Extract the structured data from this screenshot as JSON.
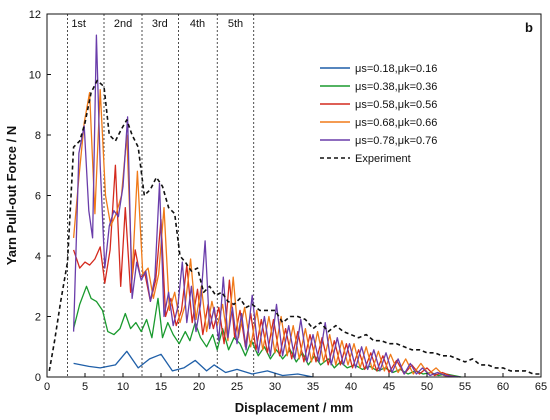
{
  "chart_data": {
    "type": "line",
    "panel_label": "b",
    "xlabel": "Displacement / mm",
    "ylabel": "Yarn Pull-out Force / N",
    "xlim": [
      0,
      65
    ],
    "ylim": [
      0,
      12
    ],
    "xticks": [
      0,
      5,
      10,
      15,
      20,
      25,
      30,
      35,
      40,
      45,
      50,
      55,
      60,
      65
    ],
    "yticks": [
      0,
      2,
      4,
      6,
      8,
      10,
      12
    ],
    "legend_position": "upper-right",
    "stage_boundaries": [
      2.7,
      7.5,
      12.5,
      17.3,
      22.4,
      27.2
    ],
    "stages": [
      {
        "label": "1st",
        "x": 3.2
      },
      {
        "label": "2nd",
        "x": 8.8
      },
      {
        "label": "3rd",
        "x": 13.8
      },
      {
        "label": "4th",
        "x": 18.8
      },
      {
        "label": "5th",
        "x": 23.8
      }
    ],
    "series": [
      {
        "name": "μs=0.18,μk=0.16",
        "color": "#1f5fa8",
        "dash": false,
        "x": [
          3.5,
          4.5,
          5.5,
          7,
          9,
          10.5,
          12,
          13.5,
          15,
          16.5,
          18,
          19.5,
          21,
          22,
          23.5,
          25,
          27,
          29,
          31,
          33,
          35
        ],
        "y": [
          0.45,
          0.4,
          0.35,
          0.3,
          0.4,
          0.85,
          0.3,
          0.6,
          0.75,
          0.2,
          0.3,
          0.55,
          0.2,
          0.4,
          0.15,
          0.25,
          0.1,
          0.2,
          0.05,
          0.1,
          0.0
        ]
      },
      {
        "name": "μs=0.38,μk=0.36",
        "color": "#1a9a2e",
        "dash": false,
        "x": [
          3.5,
          4.3,
          5.2,
          5.8,
          6.5,
          7.3,
          8.0,
          8.8,
          9.6,
          10.3,
          11.0,
          11.7,
          12.4,
          13.1,
          13.8,
          14.6,
          15.2,
          15.9,
          16.6,
          17.4,
          18.2,
          18.8,
          19.5,
          20.2,
          21.0,
          21.8,
          22.4,
          23.1,
          23.9,
          24.6,
          25.4,
          26.1,
          26.9,
          27.8,
          28.6,
          29.4,
          30.2,
          31.0,
          32.0,
          32.8,
          33.6,
          34.4,
          35.2,
          36.0,
          37.0,
          37.8,
          38.6,
          39.5,
          40.5,
          41.5,
          42.5,
          43.5,
          44.5,
          45.5,
          46.5,
          47.5,
          48.5,
          49.5,
          50.5,
          51.5,
          52.5,
          53.5,
          54.5
        ],
        "y": [
          1.6,
          2.4,
          3.0,
          2.6,
          2.5,
          2.2,
          1.5,
          1.4,
          1.6,
          2.1,
          1.6,
          1.8,
          1.5,
          1.9,
          1.3,
          2.6,
          1.3,
          1.8,
          1.4,
          1.1,
          1.5,
          1.2,
          1.8,
          1.3,
          1.0,
          1.4,
          0.9,
          1.6,
          0.9,
          1.3,
          1.1,
          0.7,
          1.2,
          0.7,
          1.0,
          0.6,
          0.9,
          0.6,
          0.9,
          0.5,
          0.8,
          0.4,
          0.7,
          0.4,
          0.6,
          0.3,
          0.5,
          0.3,
          0.4,
          0.25,
          0.35,
          0.2,
          0.3,
          0.15,
          0.25,
          0.1,
          0.2,
          0.1,
          0.15,
          0.05,
          0.1,
          0.05,
          0.0
        ]
      },
      {
        "name": "μs=0.58,μk=0.56",
        "color": "#d42a1e",
        "dash": false,
        "x": [
          3.5,
          4.3,
          5.0,
          5.6,
          6.3,
          7.0,
          7.6,
          8.3,
          9.0,
          9.7,
          10.3,
          11.0,
          11.6,
          12.3,
          12.9,
          13.6,
          14.3,
          15.0,
          15.6,
          16.3,
          17.0,
          17.7,
          18.4,
          19.1,
          19.8,
          20.5,
          21.2,
          21.9,
          22.6,
          23.3,
          24.0,
          24.7,
          25.4,
          26.1,
          26.8,
          27.5,
          28.2,
          29.0,
          29.8,
          30.6,
          31.4,
          32.2,
          33.0,
          33.8,
          34.6,
          35.4,
          36.2,
          37.0,
          37.8,
          38.6,
          39.4,
          40.2,
          41.0,
          41.8,
          42.6,
          43.4,
          44.2,
          45.0,
          46.0,
          47.0,
          48.0,
          49.0,
          50.0,
          51.0,
          52.0,
          53.0,
          54.0
        ],
        "y": [
          4.2,
          3.6,
          3.8,
          3.7,
          3.9,
          4.3,
          3.1,
          4.2,
          7.0,
          3.0,
          5.6,
          2.8,
          4.2,
          3.3,
          3.4,
          2.5,
          3.2,
          5.2,
          2.0,
          2.6,
          1.7,
          2.2,
          3.7,
          1.8,
          2.9,
          1.4,
          2.4,
          1.6,
          2.3,
          1.1,
          3.2,
          1.3,
          2.2,
          1.0,
          2.1,
          0.9,
          1.9,
          0.8,
          1.9,
          0.7,
          1.6,
          0.6,
          1.5,
          0.5,
          1.4,
          0.5,
          1.3,
          0.4,
          1.2,
          0.4,
          1.1,
          0.3,
          0.9,
          0.25,
          0.8,
          0.2,
          0.7,
          0.15,
          0.55,
          0.1,
          0.4,
          0.1,
          0.3,
          0.05,
          0.15,
          0.05,
          0.0
        ]
      },
      {
        "name": "μs=0.68,μk=0.66",
        "color": "#f07a18",
        "dash": false,
        "x": [
          3.5,
          4.2,
          4.9,
          5.6,
          6.3,
          7.0,
          7.7,
          8.4,
          9.1,
          9.8,
          10.5,
          11.2,
          11.9,
          12.6,
          13.3,
          14.0,
          14.7,
          15.4,
          16.1,
          16.8,
          17.5,
          18.2,
          18.9,
          19.6,
          20.3,
          21.0,
          21.7,
          22.4,
          23.1,
          23.8,
          24.5,
          25.2,
          26.0,
          26.8,
          27.6,
          28.4,
          29.2,
          30.0,
          30.8,
          31.6,
          32.4,
          33.2,
          34.0,
          34.8,
          35.6,
          36.4,
          37.2,
          38.0,
          38.8,
          39.6,
          40.4,
          41.2,
          42.0,
          42.8,
          43.6,
          44.4,
          45.2,
          46.2,
          47.2,
          48.2,
          49.2,
          50.2,
          51.2,
          52.2,
          53.2
        ],
        "y": [
          4.6,
          6.6,
          8.4,
          9.4,
          5.4,
          9.5,
          6.0,
          5.0,
          5.4,
          6.0,
          8.0,
          3.3,
          6.8,
          3.4,
          3.6,
          2.6,
          3.4,
          5.6,
          2.2,
          2.8,
          1.8,
          2.4,
          3.9,
          1.9,
          3.0,
          1.5,
          2.5,
          1.7,
          2.4,
          1.2,
          3.3,
          1.3,
          2.3,
          1.0,
          2.2,
          0.9,
          2.0,
          0.8,
          2.0,
          0.7,
          1.7,
          0.6,
          1.6,
          0.5,
          1.5,
          0.5,
          1.4,
          0.4,
          1.2,
          0.4,
          1.1,
          0.3,
          1.0,
          0.25,
          0.85,
          0.2,
          0.75,
          0.15,
          0.6,
          0.1,
          0.45,
          0.1,
          0.3,
          0.05,
          0.0
        ]
      },
      {
        "name": "μs=0.78,μk=0.76",
        "color": "#6a3daa",
        "dash": false,
        "x": [
          3.5,
          4.2,
          4.9,
          5.5,
          6.0,
          6.5,
          7.0,
          7.6,
          8.2,
          8.8,
          9.4,
          10.0,
          10.6,
          11.2,
          11.8,
          12.4,
          13.0,
          13.6,
          14.2,
          14.8,
          15.4,
          16.0,
          16.6,
          17.2,
          17.8,
          18.4,
          19.0,
          19.6,
          20.2,
          20.8,
          21.4,
          22.0,
          22.6,
          23.2,
          23.8,
          24.4,
          25.0,
          25.6,
          26.2,
          27.0,
          27.8,
          28.6,
          29.4,
          30.2,
          31.0,
          31.8,
          32.6,
          33.4,
          34.2,
          35.0,
          35.8,
          36.6,
          37.4,
          38.2,
          39.0,
          39.8,
          40.6,
          41.4,
          42.2,
          43.0,
          43.8,
          44.6,
          45.4,
          46.2,
          47.0,
          47.8,
          48.6,
          49.4,
          50.4,
          51.4,
          52.4,
          53.4,
          54.4
        ],
        "y": [
          1.5,
          7.4,
          8.3,
          5.5,
          4.6,
          11.3,
          7.0,
          3.6,
          5.0,
          5.5,
          5.3,
          6.3,
          8.6,
          2.6,
          3.8,
          3.2,
          3.5,
          2.5,
          3.3,
          6.4,
          2.0,
          2.8,
          1.7,
          2.3,
          3.8,
          1.8,
          3.0,
          1.5,
          2.4,
          4.5,
          1.6,
          2.3,
          1.2,
          3.3,
          1.3,
          2.3,
          1.1,
          2.1,
          0.9,
          2.7,
          0.8,
          2.0,
          0.7,
          2.4,
          0.7,
          1.7,
          0.6,
          1.9,
          0.5,
          1.4,
          0.5,
          1.8,
          0.4,
          1.3,
          0.4,
          1.1,
          0.3,
          1.0,
          0.25,
          0.9,
          0.2,
          0.8,
          0.15,
          0.6,
          0.1,
          0.45,
          0.1,
          0.3,
          0.05,
          0.15,
          0.05,
          0.02,
          0.0
        ]
      },
      {
        "name": "Experiment",
        "color": "#111111",
        "dash": true,
        "x": [
          0.3,
          1.0,
          1.8,
          2.7,
          3.5,
          4.3,
          5.0,
          5.8,
          6.6,
          7.5,
          8.2,
          9.0,
          9.8,
          10.5,
          11.2,
          12.0,
          12.8,
          13.6,
          14.4,
          15.2,
          16.0,
          16.8,
          17.5,
          18.2,
          19.0,
          19.8,
          20.6,
          21.4,
          22.2,
          23.0,
          23.8,
          24.6,
          25.4,
          26.2,
          27.0,
          28.0,
          29.0,
          30.0,
          31.0,
          32.0,
          33.0,
          34.0,
          35.0,
          36.0,
          37.0,
          38.0,
          39.0,
          40.0,
          41.0,
          42.0,
          43.0,
          44.0,
          45.0,
          46.0,
          47.0,
          48.0,
          49.0,
          50.0,
          51.0,
          52.0,
          53.0,
          54.0,
          55.0,
          56.0,
          57.0,
          58.0,
          59.0,
          60.0,
          61.0,
          62.0,
          63.0,
          64.0,
          65.0
        ],
        "y": [
          0.2,
          1.2,
          2.5,
          3.8,
          7.6,
          7.8,
          8.4,
          9.4,
          9.8,
          9.6,
          8.0,
          7.8,
          8.2,
          8.5,
          8.0,
          7.6,
          6.0,
          6.2,
          6.6,
          6.3,
          5.6,
          5.4,
          4.0,
          3.8,
          3.5,
          3.6,
          2.8,
          3.0,
          2.7,
          2.8,
          2.5,
          2.4,
          2.6,
          2.3,
          2.4,
          2.2,
          2.2,
          2.2,
          1.8,
          2.0,
          2.0,
          1.9,
          1.6,
          1.8,
          1.5,
          1.7,
          1.5,
          1.4,
          1.3,
          1.4,
          1.2,
          1.2,
          1.1,
          1.1,
          1.0,
          0.9,
          0.9,
          0.8,
          0.8,
          0.7,
          0.7,
          0.6,
          0.5,
          0.6,
          0.4,
          0.4,
          0.3,
          0.3,
          0.2,
          0.2,
          0.2,
          0.1,
          0.1
        ]
      }
    ]
  }
}
